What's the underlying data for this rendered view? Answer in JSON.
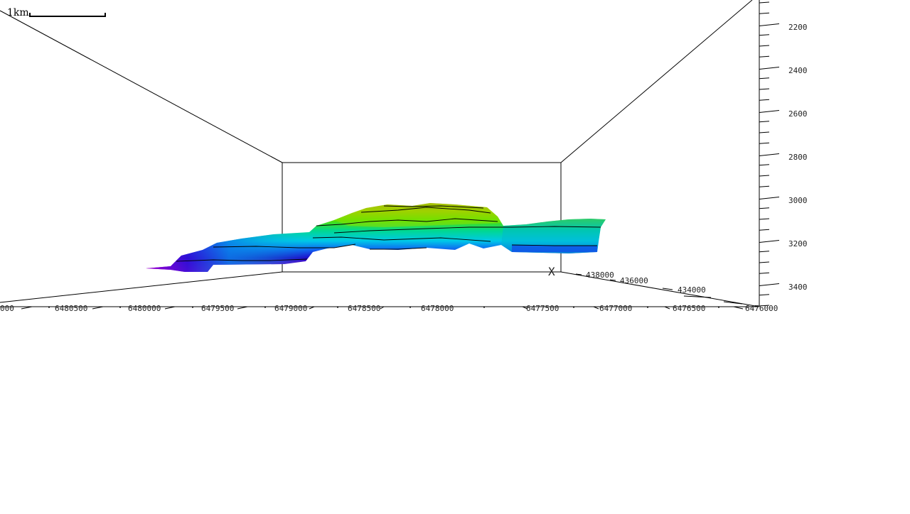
{
  "scale": {
    "label": "1km"
  },
  "axes": {
    "depth_ticks": [
      "2200",
      "2400",
      "2600",
      "2800",
      "3000",
      "3200",
      "3400"
    ],
    "y_ticks": [
      "000",
      "6480500",
      "6480000",
      "6479500",
      "6479000",
      "6478500",
      "6478000",
      "6477500",
      "6477000",
      "6476500",
      "6476000"
    ],
    "x_ticks": [
      "438000",
      "436000",
      "434000"
    ],
    "x_axis_label": "X"
  }
}
